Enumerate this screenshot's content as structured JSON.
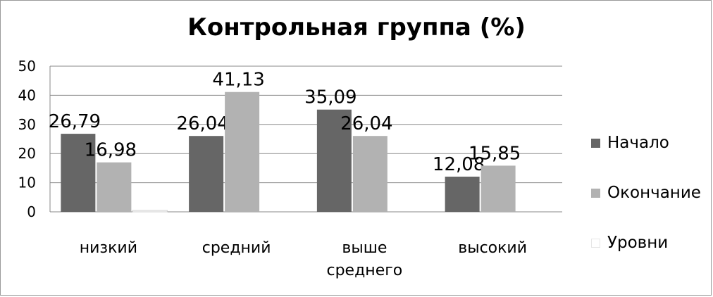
{
  "chart_data": {
    "type": "bar",
    "title": "Контрольная группа (%)",
    "categories": [
      [
        "низкий"
      ],
      [
        "средний"
      ],
      [
        "выше",
        "среднего"
      ],
      [
        "высокий"
      ]
    ],
    "series": [
      {
        "name": "Начало",
        "color": "#666666",
        "values": [
          26.79,
          26.04,
          35.09,
          12.08
        ],
        "labels": [
          "26,79",
          "26,04",
          "35,09",
          "12,08"
        ]
      },
      {
        "name": "Окончание",
        "color": "#b2b2b2",
        "values": [
          16.98,
          41.13,
          26.04,
          15.85
        ],
        "labels": [
          "16,98",
          "41,13",
          "26,04",
          "15,85"
        ]
      },
      {
        "name": "Уровни",
        "color": "#ffffff",
        "values": [
          0,
          null,
          null,
          null
        ],
        "labels": []
      }
    ],
    "ylim": [
      0,
      50
    ],
    "yticks": [
      0,
      10,
      20,
      30,
      40,
      50
    ],
    "grid": true,
    "legend_position": "right"
  }
}
